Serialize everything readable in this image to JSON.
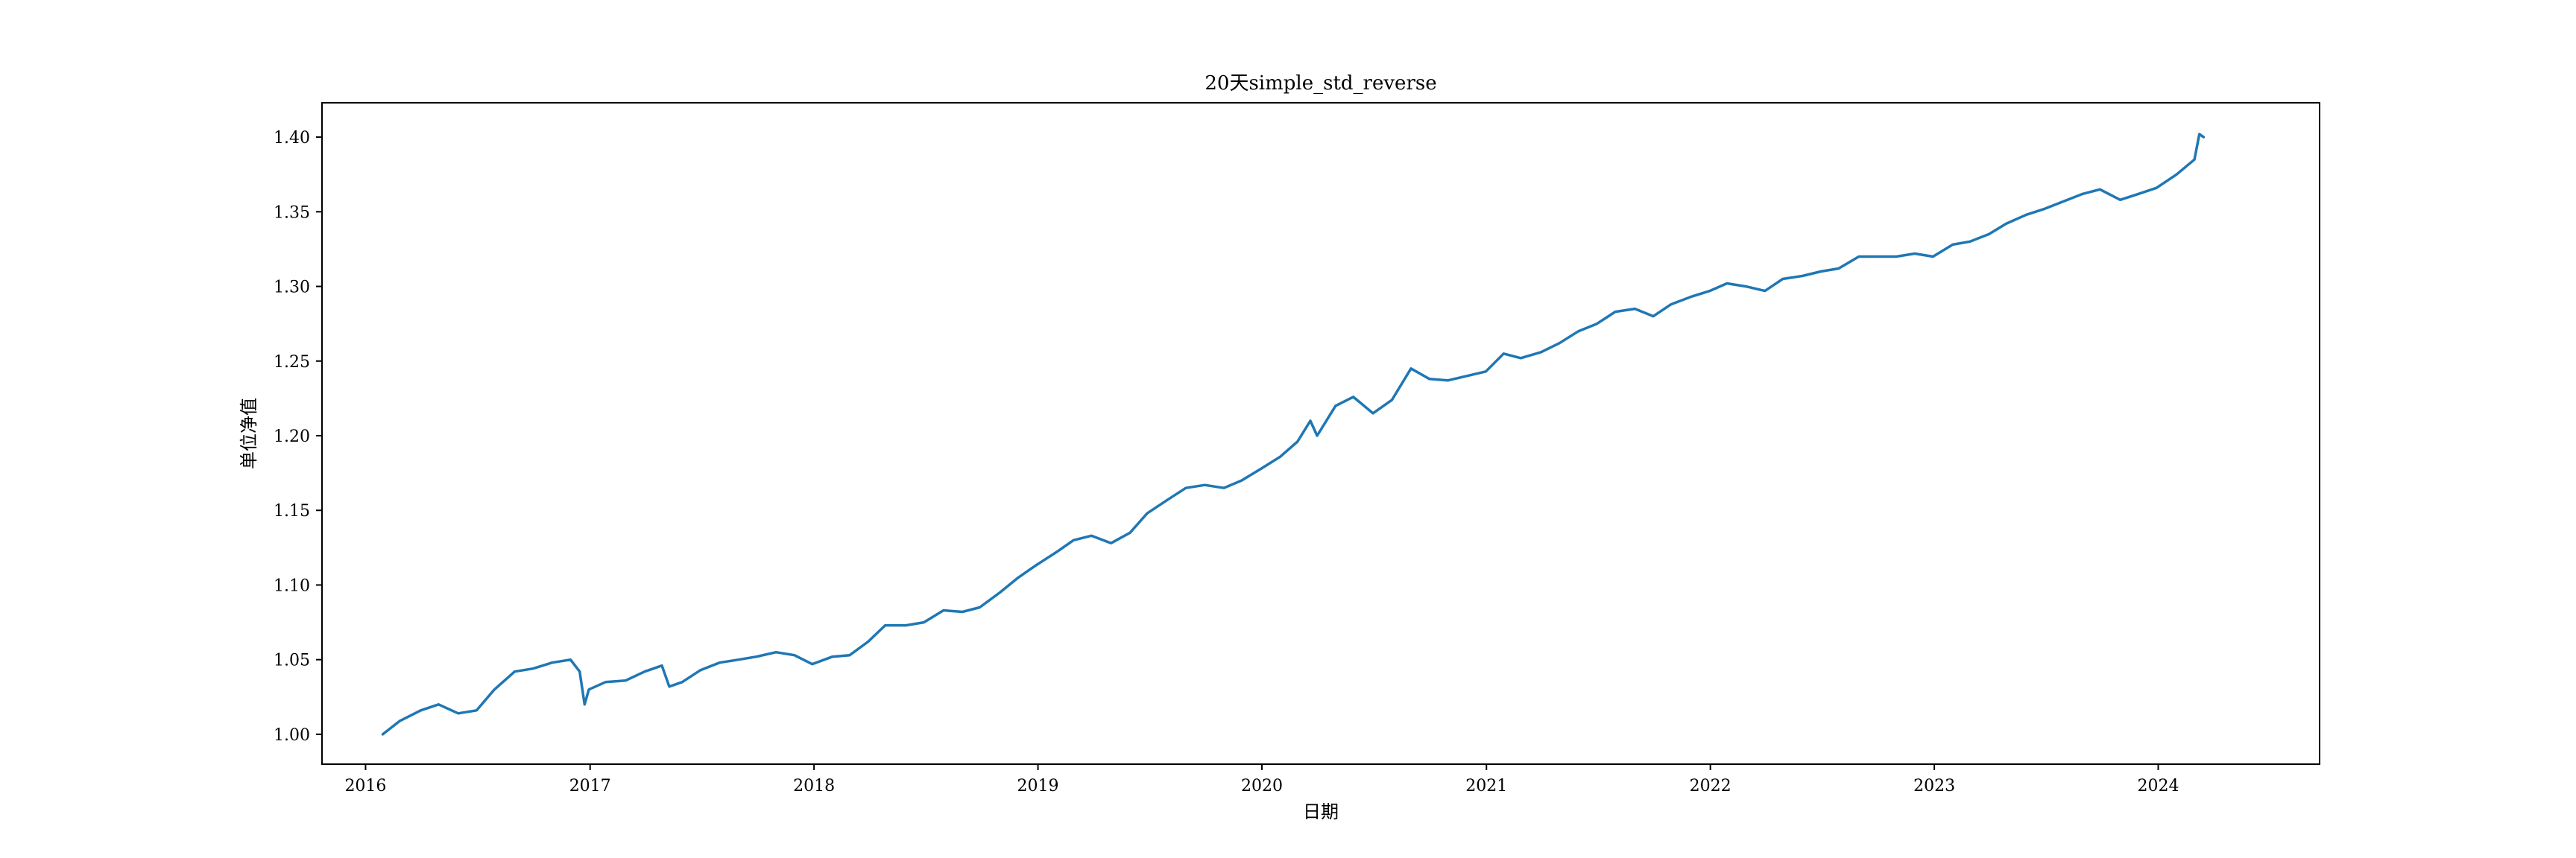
{
  "chart_data": {
    "type": "line",
    "title": "20天simple_std_reverse",
    "xlabel": "日期",
    "ylabel": "单位净值",
    "grid": false,
    "legend": "none",
    "xlim": [
      "2015-10-22",
      "2024-09-20"
    ],
    "ylim": [
      0.98,
      1.423
    ],
    "x_ticks": [
      "2016",
      "2017",
      "2018",
      "2019",
      "2020",
      "2021",
      "2022",
      "2023",
      "2024"
    ],
    "y_ticks": [
      "1.00",
      "1.05",
      "1.10",
      "1.15",
      "1.20",
      "1.25",
      "1.30",
      "1.35",
      "1.40"
    ],
    "series": [
      {
        "color": "#1f77b4",
        "x": [
          "2016-01-29",
          "2016-02-26",
          "2016-03-31",
          "2016-04-29",
          "2016-05-31",
          "2016-06-30",
          "2016-07-29",
          "2016-08-31",
          "2016-09-30",
          "2016-10-31",
          "2016-11-30",
          "2016-12-15",
          "2016-12-23",
          "2016-12-30",
          "2017-01-26",
          "2017-02-28",
          "2017-03-31",
          "2017-04-28",
          "2017-05-10",
          "2017-05-31",
          "2017-06-30",
          "2017-07-31",
          "2017-08-31",
          "2017-09-29",
          "2017-10-31",
          "2017-11-30",
          "2017-12-29",
          "2018-01-31",
          "2018-02-28",
          "2018-03-30",
          "2018-04-27",
          "2018-05-31",
          "2018-06-29",
          "2018-07-31",
          "2018-08-31",
          "2018-09-28",
          "2018-10-31",
          "2018-11-30",
          "2018-12-28",
          "2019-01-31",
          "2019-02-28",
          "2019-03-29",
          "2019-04-30",
          "2019-05-31",
          "2019-06-28",
          "2019-07-31",
          "2019-08-30",
          "2019-09-30",
          "2019-10-31",
          "2019-11-29",
          "2019-12-31",
          "2020-01-31",
          "2020-02-28",
          "2020-03-20",
          "2020-03-31",
          "2020-04-30",
          "2020-05-29",
          "2020-06-30",
          "2020-07-31",
          "2020-08-31",
          "2020-09-30",
          "2020-10-30",
          "2020-11-30",
          "2020-12-31",
          "2021-01-29",
          "2021-02-26",
          "2021-03-31",
          "2021-04-30",
          "2021-05-31",
          "2021-06-30",
          "2021-07-30",
          "2021-08-31",
          "2021-09-30",
          "2021-10-29",
          "2021-11-30",
          "2021-12-31",
          "2022-01-28",
          "2022-02-28",
          "2022-03-31",
          "2022-04-29",
          "2022-05-31",
          "2022-06-30",
          "2022-07-29",
          "2022-08-31",
          "2022-09-30",
          "2022-10-31",
          "2022-11-30",
          "2022-12-30",
          "2023-01-31",
          "2023-02-28",
          "2023-03-31",
          "2023-04-28",
          "2023-05-31",
          "2023-06-30",
          "2023-07-31",
          "2023-08-31",
          "2023-09-28",
          "2023-10-31",
          "2023-11-30",
          "2023-12-29",
          "2024-01-31",
          "2024-02-29",
          "2024-03-08",
          "2024-03-15"
        ],
        "y": [
          1.0,
          1.009,
          1.016,
          1.02,
          1.014,
          1.016,
          1.03,
          1.042,
          1.044,
          1.048,
          1.05,
          1.042,
          1.02,
          1.03,
          1.035,
          1.036,
          1.042,
          1.046,
          1.032,
          1.035,
          1.043,
          1.048,
          1.05,
          1.052,
          1.055,
          1.053,
          1.047,
          1.052,
          1.053,
          1.062,
          1.073,
          1.073,
          1.075,
          1.083,
          1.082,
          1.085,
          1.095,
          1.105,
          1.113,
          1.122,
          1.13,
          1.133,
          1.128,
          1.135,
          1.148,
          1.157,
          1.165,
          1.167,
          1.165,
          1.17,
          1.178,
          1.186,
          1.196,
          1.21,
          1.2,
          1.22,
          1.226,
          1.215,
          1.224,
          1.245,
          1.238,
          1.237,
          1.24,
          1.243,
          1.255,
          1.252,
          1.256,
          1.262,
          1.27,
          1.275,
          1.283,
          1.285,
          1.28,
          1.288,
          1.293,
          1.297,
          1.302,
          1.3,
          1.297,
          1.305,
          1.307,
          1.31,
          1.312,
          1.32,
          1.32,
          1.32,
          1.322,
          1.32,
          1.328,
          1.33,
          1.335,
          1.342,
          1.348,
          1.352,
          1.357,
          1.362,
          1.365,
          1.358,
          1.362,
          1.366,
          1.375,
          1.385,
          1.402,
          1.4
        ]
      }
    ]
  }
}
